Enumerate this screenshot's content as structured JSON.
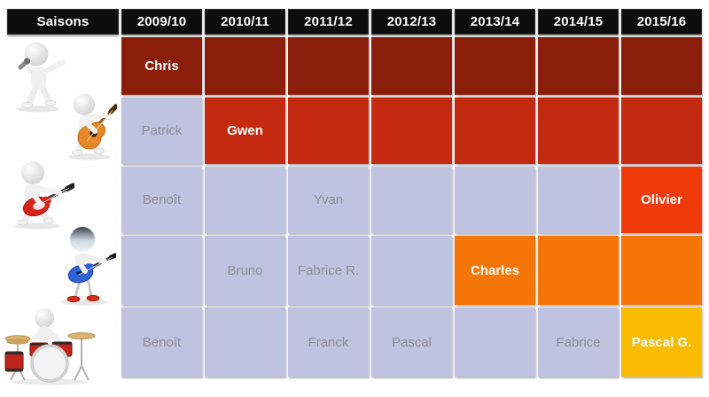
{
  "header_label": "Saisons",
  "colors": {
    "header_bg": "#0d0d0d",
    "dark_red": "#8b1e0b",
    "red": "#c32a10",
    "orange_red": "#ef3b0a",
    "orange": "#f57507",
    "gold": "#fabb03",
    "lavender": "#bfc3df",
    "muted_text": "#8d8d98",
    "emph_text": "#ffffff"
  },
  "figures": [
    {
      "icon": "singer-icon"
    },
    {
      "icon": "acoustic-guitarist-icon"
    },
    {
      "icon": "electric-guitarist-icon"
    },
    {
      "icon": "bassist-icon"
    },
    {
      "icon": "drummer-icon"
    }
  ],
  "chart_data": {
    "type": "table",
    "title": "Saisons",
    "columns": [
      "2009/10",
      "2010/11",
      "2011/12",
      "2012/13",
      "2013/14",
      "2014/15",
      "2015/16"
    ],
    "rows": [
      {
        "role": "singer",
        "cells": [
          {
            "t": "Chris",
            "c": "dark_red",
            "b": true
          },
          {
            "t": "",
            "c": "dark_red"
          },
          {
            "t": "",
            "c": "dark_red"
          },
          {
            "t": "",
            "c": "dark_red"
          },
          {
            "t": "",
            "c": "dark_red"
          },
          {
            "t": "",
            "c": "dark_red"
          },
          {
            "t": "",
            "c": "dark_red"
          }
        ]
      },
      {
        "role": "acoustic-guitarist",
        "cells": [
          {
            "t": "Patrick",
            "c": "lavender"
          },
          {
            "t": "Gwen",
            "c": "red",
            "b": true
          },
          {
            "t": "",
            "c": "red"
          },
          {
            "t": "",
            "c": "red"
          },
          {
            "t": "",
            "c": "red"
          },
          {
            "t": "",
            "c": "red"
          },
          {
            "t": "",
            "c": "red"
          }
        ]
      },
      {
        "role": "electric-guitarist",
        "cells": [
          {
            "t": "Benoît",
            "c": "lavender"
          },
          {
            "t": "",
            "c": "lavender"
          },
          {
            "t": "Yvan",
            "c": "lavender"
          },
          {
            "t": "",
            "c": "lavender"
          },
          {
            "t": "",
            "c": "lavender"
          },
          {
            "t": "",
            "c": "lavender"
          },
          {
            "t": "Olivier",
            "c": "orange_red",
            "b": true
          }
        ]
      },
      {
        "role": "bassist",
        "cells": [
          {
            "t": "",
            "c": "lavender"
          },
          {
            "t": "Bruno",
            "c": "lavender"
          },
          {
            "t": "Fabrice R.",
            "c": "lavender"
          },
          {
            "t": "",
            "c": "lavender"
          },
          {
            "t": "Charles",
            "c": "orange",
            "b": true
          },
          {
            "t": "",
            "c": "orange"
          },
          {
            "t": "",
            "c": "orange"
          }
        ]
      },
      {
        "role": "drummer",
        "cells": [
          {
            "t": "Benoît",
            "c": "lavender"
          },
          {
            "t": "",
            "c": "lavender"
          },
          {
            "t": "Franck",
            "c": "lavender"
          },
          {
            "t": "Pascal",
            "c": "lavender"
          },
          {
            "t": "",
            "c": "lavender"
          },
          {
            "t": "Fabrice",
            "c": "lavender"
          },
          {
            "t": "Pascal G.",
            "c": "gold",
            "b": true
          }
        ]
      }
    ]
  }
}
